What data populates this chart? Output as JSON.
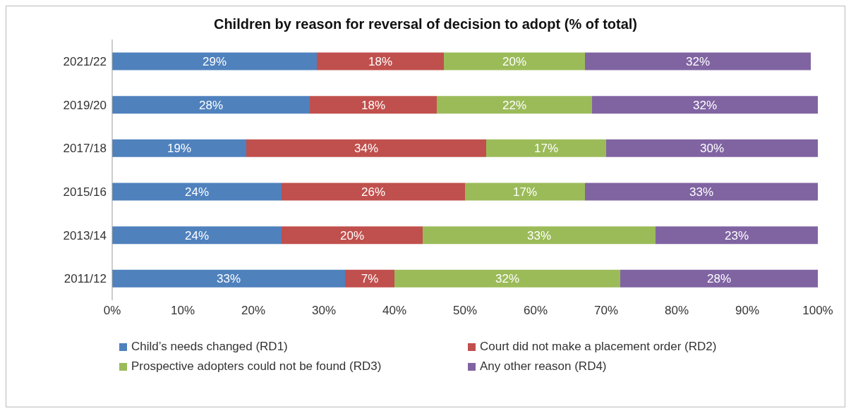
{
  "chart_data": {
    "type": "bar",
    "orientation": "horizontal",
    "stacked": true,
    "title": "Children by reason for reversal of decision to adopt (% of total)",
    "categories": [
      "2021/22",
      "2019/20",
      "2017/18",
      "2015/16",
      "2013/14",
      "2011/12"
    ],
    "series": [
      {
        "name": "Child’s needs changed (RD1)",
        "color": "#4f81bd",
        "values": [
          29,
          28,
          19,
          24,
          24,
          33
        ],
        "value_labels": [
          "29%",
          "28%",
          "19%",
          "24%",
          "24%",
          "33%"
        ]
      },
      {
        "name": "Court did not make a placement order (RD2)",
        "color": "#c0504d",
        "values": [
          18,
          18,
          34,
          26,
          20,
          7
        ],
        "value_labels": [
          "18%",
          "18%",
          "34%",
          "26%",
          "20%",
          "7%"
        ]
      },
      {
        "name": "Prospective adopters could not be found (RD3)",
        "color": "#9bbb59",
        "values": [
          20,
          22,
          17,
          17,
          33,
          32
        ],
        "value_labels": [
          "20%",
          "22%",
          "17%",
          "17%",
          "33%",
          "32%"
        ]
      },
      {
        "name": "Any other reason (RD4)",
        "color": "#8064a2",
        "values": [
          32,
          32,
          30,
          33,
          23,
          28
        ],
        "value_labels": [
          "32%",
          "32%",
          "30%",
          "33%",
          "23%",
          "28%"
        ]
      }
    ],
    "xlim": [
      0,
      100
    ],
    "xticks": [
      {
        "value": 0,
        "label": "0%"
      },
      {
        "value": 10,
        "label": "10%"
      },
      {
        "value": 20,
        "label": "20%"
      },
      {
        "value": 30,
        "label": "30%"
      },
      {
        "value": 40,
        "label": "40%"
      },
      {
        "value": 50,
        "label": "50%"
      },
      {
        "value": 60,
        "label": "60%"
      },
      {
        "value": 70,
        "label": "70%"
      },
      {
        "value": 80,
        "label": "80%"
      },
      {
        "value": 90,
        "label": "90%"
      },
      {
        "value": 100,
        "label": "100%"
      }
    ],
    "grid": false,
    "legend": "bottom"
  }
}
